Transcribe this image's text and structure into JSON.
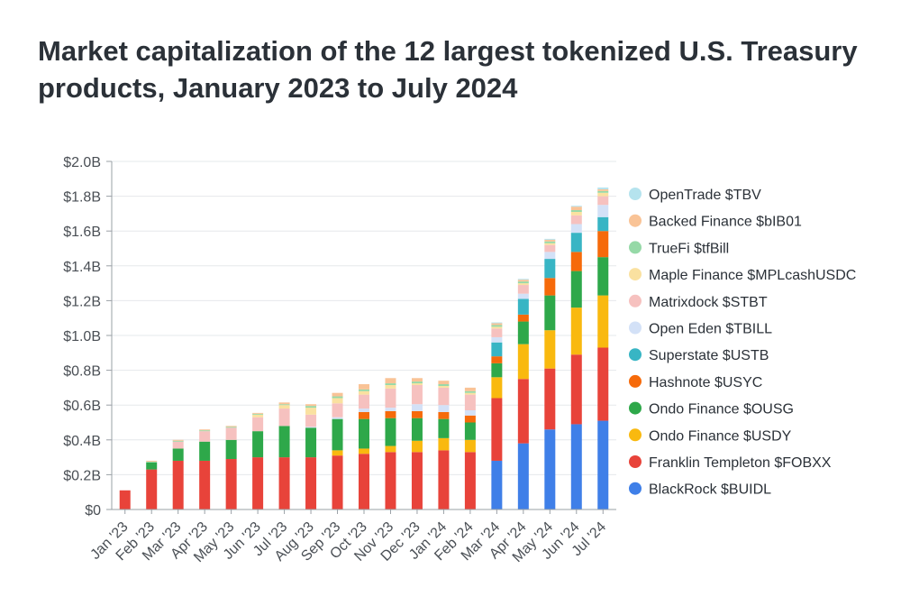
{
  "chart_data": {
    "type": "bar",
    "stacked": true,
    "title": "Market capitalization of the 12 largest tokenized U.S. Treasury products, January 2023 to July 2024",
    "xlabel": "",
    "ylabel": "",
    "ylim": [
      0,
      2.0
    ],
    "y_ticks": [
      {
        "value": 0,
        "label": "$0"
      },
      {
        "value": 0.2,
        "label": "$0.2B"
      },
      {
        "value": 0.4,
        "label": "$0.4B"
      },
      {
        "value": 0.6,
        "label": "$0.6B"
      },
      {
        "value": 0.8,
        "label": "$0.8B"
      },
      {
        "value": 1.0,
        "label": "$1.0B"
      },
      {
        "value": 1.2,
        "label": "$1.2B"
      },
      {
        "value": 1.4,
        "label": "$1.4B"
      },
      {
        "value": 1.6,
        "label": "$1.6B"
      },
      {
        "value": 1.8,
        "label": "$1.8B"
      },
      {
        "value": 2.0,
        "label": "$2.0B"
      }
    ],
    "grid": true,
    "legend_position": "right",
    "categories": [
      "Jan '23",
      "Feb '23",
      "Mar '23",
      "Apr '23",
      "May '23",
      "Jun '23",
      "Jul '23",
      "Aug '23",
      "Sep '23",
      "Oct '23",
      "Nov '23",
      "Dec '23",
      "Jan '24",
      "Feb '24",
      "Mar '24",
      "Apr '24",
      "May '24",
      "Jun '24",
      "Jul '24"
    ],
    "series": [
      {
        "name": "BlackRock $BUIDL",
        "color": "#3f7fe8",
        "values": [
          0,
          0,
          0,
          0,
          0,
          0,
          0,
          0,
          0,
          0,
          0,
          0,
          0,
          0,
          0.28,
          0.38,
          0.46,
          0.49,
          0.51
        ]
      },
      {
        "name": "Franklin Templeton $FOBXX",
        "color": "#e8433a",
        "values": [
          0.11,
          0.23,
          0.28,
          0.28,
          0.29,
          0.3,
          0.3,
          0.3,
          0.31,
          0.32,
          0.33,
          0.33,
          0.34,
          0.33,
          0.36,
          0.37,
          0.35,
          0.4,
          0.42
        ]
      },
      {
        "name": "Ondo Finance $USDY",
        "color": "#f9b90f",
        "values": [
          0,
          0,
          0,
          0,
          0,
          0,
          0,
          0,
          0.03,
          0.03,
          0.035,
          0.065,
          0.07,
          0.07,
          0.12,
          0.2,
          0.22,
          0.27,
          0.3
        ]
      },
      {
        "name": "Ondo Finance $OUSG",
        "color": "#2ea84a",
        "values": [
          0,
          0.04,
          0.07,
          0.11,
          0.11,
          0.15,
          0.18,
          0.17,
          0.18,
          0.17,
          0.16,
          0.13,
          0.11,
          0.1,
          0.08,
          0.13,
          0.2,
          0.21,
          0.22
        ]
      },
      {
        "name": "Hashnote $USYC",
        "color": "#f66a0a",
        "values": [
          0,
          0,
          0,
          0,
          0,
          0,
          0,
          0,
          0,
          0.04,
          0.04,
          0.04,
          0.04,
          0.04,
          0.04,
          0.04,
          0.1,
          0.11,
          0.15
        ]
      },
      {
        "name": "Superstate $USTB",
        "color": "#38b5c4",
        "values": [
          0,
          0,
          0,
          0,
          0,
          0,
          0,
          0,
          0,
          0,
          0,
          0,
          0,
          0,
          0.08,
          0.09,
          0.11,
          0.11,
          0.08
        ]
      },
      {
        "name": "Open Eden $TBILL",
        "color": "#d3e1f7",
        "values": [
          0,
          0,
          0,
          0,
          0,
          0,
          0,
          0.005,
          0.01,
          0.02,
          0.02,
          0.04,
          0.04,
          0.03,
          0.03,
          0.03,
          0.04,
          0.05,
          0.07
        ]
      },
      {
        "name": "Matrixdock $STBT",
        "color": "#f6c1bf",
        "values": [
          0,
          0,
          0.04,
          0.06,
          0.07,
          0.08,
          0.1,
          0.07,
          0.08,
          0.08,
          0.11,
          0.11,
          0.1,
          0.09,
          0.05,
          0.05,
          0.04,
          0.05,
          0.05
        ]
      },
      {
        "name": "Maple Finance $MPLcashUSDC",
        "color": "#fae1a0",
        "values": [
          0,
          0,
          0,
          0,
          0,
          0.015,
          0.02,
          0.04,
          0.03,
          0.02,
          0.02,
          0.01,
          0.01,
          0.01,
          0.01,
          0.01,
          0.01,
          0.02,
          0.02
        ]
      },
      {
        "name": "TrueFi $tfBill",
        "color": "#96d9a7",
        "values": [
          0,
          0.005,
          0.005,
          0.005,
          0.005,
          0.005,
          0.005,
          0.01,
          0.01,
          0.01,
          0.01,
          0.01,
          0.01,
          0.01,
          0.01,
          0.01,
          0.01,
          0.01,
          0.01
        ]
      },
      {
        "name": "Backed Finance $bIB01",
        "color": "#f9c396",
        "values": [
          0,
          0.005,
          0.005,
          0.005,
          0.005,
          0.005,
          0.01,
          0.01,
          0.02,
          0.03,
          0.03,
          0.02,
          0.02,
          0.02,
          0.01,
          0.01,
          0.01,
          0.02,
          0.01
        ]
      },
      {
        "name": "OpenTrade $TBV",
        "color": "#b5e3ee",
        "values": [
          0,
          0,
          0,
          0,
          0,
          0,
          0,
          0,
          0,
          0,
          0,
          0,
          0,
          0,
          0.005,
          0.005,
          0.005,
          0.005,
          0.01
        ]
      }
    ],
    "legend_order": [
      11,
      10,
      9,
      8,
      7,
      6,
      5,
      4,
      3,
      2,
      1,
      0
    ]
  }
}
